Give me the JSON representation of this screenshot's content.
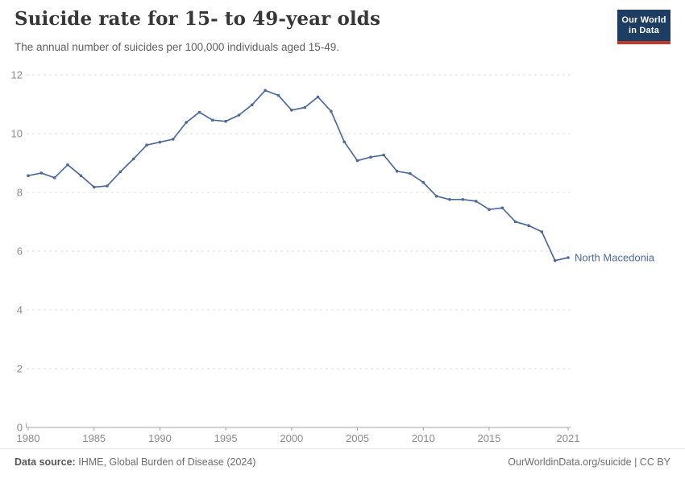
{
  "header": {
    "title": "Suicide rate for 15- to 49-year olds",
    "subtitle": "The annual number of suicides per 100,000 individuals aged 15-49."
  },
  "logo": {
    "line1": "Our World",
    "line2": "in Data",
    "bg_color": "#1d3d63",
    "stripe_color": "#c0392b"
  },
  "chart_data": {
    "type": "line",
    "title": "Suicide rate for 15- to 49-year olds",
    "subtitle": "The annual number of suicides per 100,000 individuals aged 15-49.",
    "xlabel": "",
    "ylabel": "",
    "ylim": [
      0,
      12
    ],
    "yticks": [
      0,
      2,
      4,
      6,
      8,
      10,
      12
    ],
    "xticks": [
      1980,
      1985,
      1990,
      1995,
      2000,
      2005,
      2010,
      2015,
      2021
    ],
    "grid": "horizontal-dashed",
    "legend_position": "end-of-line-label",
    "series": [
      {
        "name": "North Macedonia",
        "color": "#4C6A9C",
        "x": [
          1980,
          1981,
          1982,
          1983,
          1984,
          1985,
          1986,
          1987,
          1988,
          1989,
          1990,
          1991,
          1992,
          1993,
          1994,
          1995,
          1996,
          1997,
          1998,
          1999,
          2000,
          2001,
          2002,
          2003,
          2004,
          2005,
          2006,
          2007,
          2008,
          2009,
          2010,
          2011,
          2012,
          2013,
          2014,
          2015,
          2016,
          2017,
          2018,
          2019,
          2020,
          2021
        ],
        "values": [
          8.57,
          8.66,
          8.5,
          8.94,
          8.57,
          8.18,
          8.22,
          8.7,
          9.14,
          9.61,
          9.71,
          9.81,
          10.38,
          10.73,
          10.46,
          10.42,
          10.63,
          10.98,
          11.47,
          11.3,
          10.8,
          10.89,
          11.25,
          10.76,
          9.72,
          9.08,
          9.2,
          9.27,
          8.72,
          8.64,
          8.34,
          7.87,
          7.76,
          7.76,
          7.7,
          7.42,
          7.47,
          7.0,
          6.87,
          6.66,
          5.68,
          5.78
        ]
      }
    ]
  },
  "footer": {
    "datasource_label": "Data source:",
    "datasource_value": "IHME, Global Burden of Disease (2024)",
    "credit": "OurWorldinData.org/suicide | CC BY"
  },
  "colors": {
    "line": "#4C6A9C",
    "gridline": "#dcdcdc",
    "axis": "#a3a3a3",
    "tick_label": "#8b8b8b",
    "title": "#373737",
    "subtitle": "#5f5f5f"
  }
}
